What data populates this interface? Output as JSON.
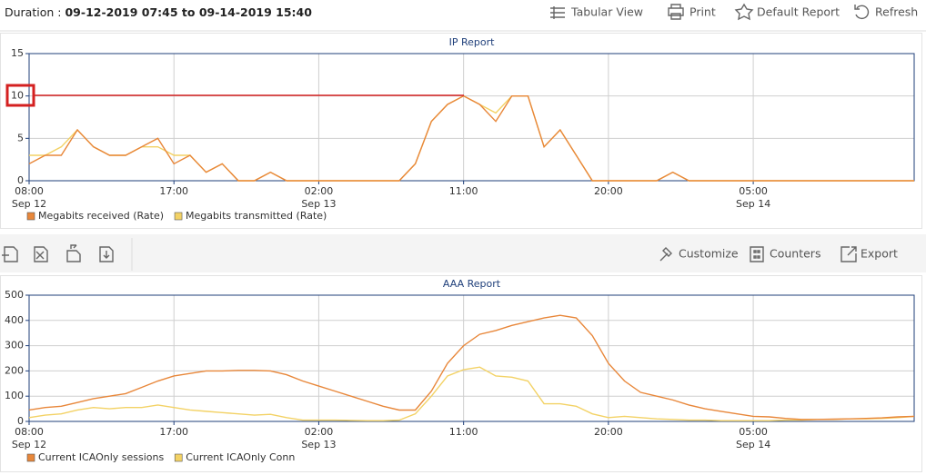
{
  "toolbar": {
    "duration_label": "Duration :",
    "duration_value": "09-12-2019 07:45 to 09-14-2019 15:40",
    "buttons": [
      "Tabular View",
      "Print",
      "Default Report",
      "Refresh"
    ]
  },
  "report_toolbar": {
    "buttons": [
      "Customize",
      "Counters",
      "Export"
    ]
  },
  "chart_data": [
    {
      "type": "line",
      "title": "IP Report",
      "x": [
        "2019-09-12 08:00",
        "2019-09-12 09:00",
        "2019-09-12 10:00",
        "2019-09-12 11:00",
        "2019-09-12 12:00",
        "2019-09-12 13:00",
        "2019-09-12 14:00",
        "2019-09-12 15:00",
        "2019-09-12 16:00",
        "2019-09-12 17:00",
        "2019-09-12 18:00",
        "2019-09-12 19:00",
        "2019-09-12 20:00",
        "2019-09-12 21:00",
        "2019-09-12 22:00",
        "2019-09-12 23:00",
        "2019-09-13 00:00",
        "2019-09-13 01:00",
        "2019-09-13 02:00",
        "2019-09-13 03:00",
        "2019-09-13 04:00",
        "2019-09-13 05:00",
        "2019-09-13 06:00",
        "2019-09-13 07:00",
        "2019-09-13 08:00",
        "2019-09-13 09:00",
        "2019-09-13 10:00",
        "2019-09-13 11:00",
        "2019-09-13 12:00",
        "2019-09-13 13:00",
        "2019-09-13 14:00",
        "2019-09-13 15:00",
        "2019-09-13 16:00",
        "2019-09-13 17:00",
        "2019-09-13 18:00",
        "2019-09-13 19:00",
        "2019-09-13 20:00",
        "2019-09-13 21:00",
        "2019-09-13 22:00",
        "2019-09-13 23:00",
        "2019-09-14 00:00",
        "2019-09-14 01:00",
        "2019-09-14 02:00",
        "2019-09-14 03:00",
        "2019-09-14 04:00",
        "2019-09-14 05:00",
        "2019-09-14 06:00",
        "2019-09-14 07:00",
        "2019-09-14 08:00",
        "2019-09-14 09:00",
        "2019-09-14 10:00",
        "2019-09-14 11:00",
        "2019-09-14 12:00",
        "2019-09-14 13:00",
        "2019-09-14 14:00",
        "2019-09-14 15:00"
      ],
      "series": [
        {
          "name": "Megabits received (Rate)",
          "color": "#e8873a",
          "values": [
            2,
            3,
            3,
            6,
            4,
            3,
            3,
            4,
            5,
            2,
            3,
            1,
            2,
            0,
            0,
            1,
            0,
            0,
            0,
            0,
            0,
            0,
            0,
            0,
            2,
            7,
            9,
            10,
            9,
            7,
            10,
            10,
            4,
            6,
            3,
            0,
            0,
            0,
            0,
            0,
            1,
            0,
            0,
            0,
            0,
            0,
            0,
            0,
            0,
            0,
            0,
            0,
            0,
            0,
            0,
            0
          ]
        },
        {
          "name": "Megabits transmitted (Rate)",
          "color": "#f3d265",
          "values": [
            3,
            3,
            4,
            6,
            4,
            3,
            3,
            4,
            4,
            3,
            3,
            1,
            2,
            0,
            0,
            1,
            0,
            0,
            0,
            0,
            0,
            0,
            0,
            0,
            2,
            7,
            9,
            10,
            9,
            8,
            10,
            10,
            4,
            6,
            3,
            0,
            0,
            0,
            0,
            0,
            1,
            0,
            0,
            0,
            0,
            0,
            0,
            0,
            0,
            0,
            0,
            0,
            0,
            0,
            0,
            0
          ]
        }
      ],
      "xlim": [
        "2019-09-12 08:00",
        "2019-09-14 15:00"
      ],
      "xticks": [
        {
          "value": "2019-09-12 08:00",
          "label": "08:00"
        },
        {
          "value": "2019-09-12 17:00",
          "label": "17:00"
        },
        {
          "value": "2019-09-13 02:00",
          "label": "02:00"
        },
        {
          "value": "2019-09-13 11:00",
          "label": "11:00"
        },
        {
          "value": "2019-09-13 20:00",
          "label": "20:00"
        },
        {
          "value": "2019-09-14 05:00",
          "label": "05:00"
        }
      ],
      "xtick_dates": [
        {
          "value": "2019-09-12 08:00",
          "label": "Sep 12"
        },
        {
          "value": "2019-09-13 02:00",
          "label": "Sep 13"
        },
        {
          "value": "2019-09-14 05:00",
          "label": "Sep 14"
        }
      ],
      "ylim": [
        0,
        15
      ],
      "yticks": [
        0,
        5,
        10,
        15
      ],
      "grid": true
    },
    {
      "type": "line",
      "title": "AAA Report",
      "x": [
        "2019-09-12 08:00",
        "2019-09-12 09:00",
        "2019-09-12 10:00",
        "2019-09-12 11:00",
        "2019-09-12 12:00",
        "2019-09-12 13:00",
        "2019-09-12 14:00",
        "2019-09-12 15:00",
        "2019-09-12 16:00",
        "2019-09-12 17:00",
        "2019-09-12 18:00",
        "2019-09-12 19:00",
        "2019-09-12 20:00",
        "2019-09-12 21:00",
        "2019-09-12 22:00",
        "2019-09-12 23:00",
        "2019-09-13 00:00",
        "2019-09-13 01:00",
        "2019-09-13 02:00",
        "2019-09-13 03:00",
        "2019-09-13 04:00",
        "2019-09-13 05:00",
        "2019-09-13 06:00",
        "2019-09-13 07:00",
        "2019-09-13 08:00",
        "2019-09-13 09:00",
        "2019-09-13 10:00",
        "2019-09-13 11:00",
        "2019-09-13 12:00",
        "2019-09-13 13:00",
        "2019-09-13 14:00",
        "2019-09-13 15:00",
        "2019-09-13 16:00",
        "2019-09-13 17:00",
        "2019-09-13 18:00",
        "2019-09-13 19:00",
        "2019-09-13 20:00",
        "2019-09-13 21:00",
        "2019-09-13 22:00",
        "2019-09-13 23:00",
        "2019-09-14 00:00",
        "2019-09-14 01:00",
        "2019-09-14 02:00",
        "2019-09-14 03:00",
        "2019-09-14 04:00",
        "2019-09-14 05:00",
        "2019-09-14 06:00",
        "2019-09-14 07:00",
        "2019-09-14 08:00",
        "2019-09-14 09:00",
        "2019-09-14 10:00",
        "2019-09-14 11:00",
        "2019-09-14 12:00",
        "2019-09-14 13:00",
        "2019-09-14 14:00",
        "2019-09-14 15:00"
      ],
      "series": [
        {
          "name": "Current ICAOnly sessions",
          "color": "#e8873a",
          "values": [
            45,
            55,
            60,
            75,
            90,
            100,
            110,
            135,
            160,
            180,
            190,
            200,
            200,
            202,
            202,
            200,
            185,
            160,
            140,
            120,
            100,
            80,
            60,
            45,
            45,
            120,
            230,
            300,
            345,
            360,
            380,
            395,
            410,
            420,
            410,
            340,
            230,
            160,
            115,
            100,
            85,
            65,
            50,
            40,
            30,
            20,
            18,
            12,
            8,
            8,
            9,
            10,
            12,
            14,
            18,
            20
          ]
        },
        {
          "name": "Current ICAOnly Conn",
          "color": "#f3d265",
          "values": [
            15,
            25,
            30,
            45,
            55,
            50,
            55,
            55,
            65,
            55,
            45,
            40,
            35,
            30,
            25,
            28,
            15,
            5,
            5,
            5,
            4,
            3,
            3,
            5,
            30,
            100,
            180,
            205,
            215,
            180,
            175,
            160,
            70,
            70,
            60,
            30,
            15,
            20,
            15,
            10,
            8,
            5,
            5,
            3,
            3,
            3,
            3,
            5,
            5,
            8,
            8,
            10,
            10,
            12,
            15,
            20
          ]
        }
      ],
      "xlim": [
        "2019-09-12 08:00",
        "2019-09-14 15:00"
      ],
      "xticks": [
        {
          "value": "2019-09-12 08:00",
          "label": "08:00"
        },
        {
          "value": "2019-09-12 17:00",
          "label": "17:00"
        },
        {
          "value": "2019-09-13 02:00",
          "label": "02:00"
        },
        {
          "value": "2019-09-13 11:00",
          "label": "11:00"
        },
        {
          "value": "2019-09-13 20:00",
          "label": "20:00"
        },
        {
          "value": "2019-09-14 05:00",
          "label": "05:00"
        }
      ],
      "xtick_dates": [
        {
          "value": "2019-09-12 08:00",
          "label": "Sep 12"
        },
        {
          "value": "2019-09-13 02:00",
          "label": "Sep 13"
        },
        {
          "value": "2019-09-14 05:00",
          "label": "Sep 14"
        }
      ],
      "ylim": [
        0,
        500
      ],
      "yticks": [
        0,
        100,
        200,
        300,
        400,
        500
      ],
      "grid": true
    }
  ]
}
